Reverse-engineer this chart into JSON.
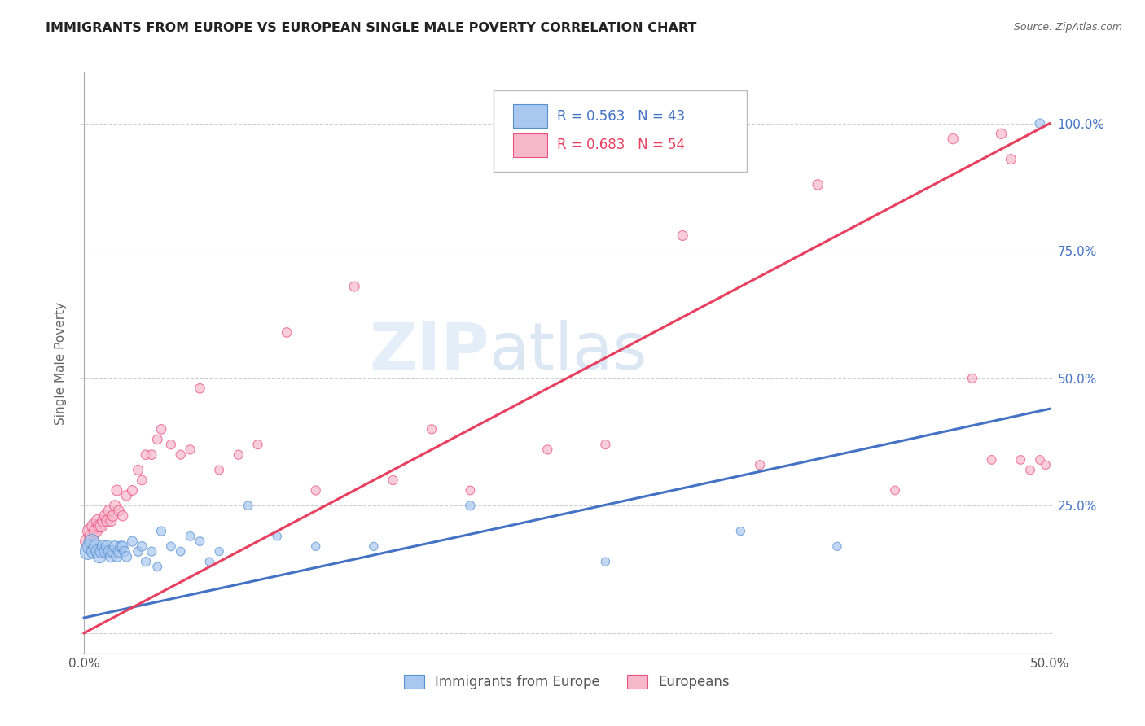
{
  "title": "IMMIGRANTS FROM EUROPE VS EUROPEAN SINGLE MALE POVERTY CORRELATION CHART",
  "source": "Source: ZipAtlas.com",
  "ylabel": "Single Male Poverty",
  "ytick_labels": [
    "",
    "25.0%",
    "50.0%",
    "75.0%",
    "100.0%"
  ],
  "ytick_positions": [
    0.0,
    0.25,
    0.5,
    0.75,
    1.0
  ],
  "xlim": [
    -0.002,
    0.502
  ],
  "ylim": [
    -0.04,
    1.1
  ],
  "legend_r_blue": "R = 0.563",
  "legend_n_blue": "N = 43",
  "legend_r_pink": "R = 0.683",
  "legend_n_pink": "N = 54",
  "legend_label_blue": "Immigrants from Europe",
  "legend_label_pink": "Europeans",
  "blue_fill_color": "#a8c8f0",
  "pink_fill_color": "#f8b8cc",
  "blue_edge_color": "#5590d0",
  "pink_edge_color": "#e85080",
  "blue_line_color": "#4472c4",
  "pink_line_color": "#e84060",
  "text_color_blue": "#4472c4",
  "text_color_pink": "#e84060",
  "blue_scatter_x": [
    0.002,
    0.003,
    0.004,
    0.005,
    0.006,
    0.007,
    0.008,
    0.009,
    0.01,
    0.011,
    0.012,
    0.013,
    0.014,
    0.015,
    0.016,
    0.017,
    0.018,
    0.019,
    0.02,
    0.021,
    0.022,
    0.025,
    0.028,
    0.03,
    0.032,
    0.035,
    0.038,
    0.04,
    0.045,
    0.05,
    0.055,
    0.06,
    0.065,
    0.07,
    0.085,
    0.1,
    0.12,
    0.15,
    0.2,
    0.27,
    0.34,
    0.39,
    0.495
  ],
  "blue_scatter_y": [
    0.16,
    0.17,
    0.18,
    0.16,
    0.17,
    0.16,
    0.15,
    0.16,
    0.17,
    0.16,
    0.17,
    0.16,
    0.15,
    0.16,
    0.17,
    0.15,
    0.16,
    0.17,
    0.17,
    0.16,
    0.15,
    0.18,
    0.16,
    0.17,
    0.14,
    0.16,
    0.13,
    0.2,
    0.17,
    0.16,
    0.19,
    0.18,
    0.14,
    0.16,
    0.25,
    0.19,
    0.17,
    0.17,
    0.25,
    0.14,
    0.2,
    0.17,
    1.0
  ],
  "blue_scatter_size": [
    200,
    180,
    160,
    150,
    140,
    130,
    130,
    120,
    120,
    110,
    110,
    100,
    100,
    100,
    95,
    90,
    90,
    85,
    85,
    80,
    80,
    75,
    70,
    70,
    65,
    65,
    60,
    65,
    60,
    60,
    60,
    60,
    55,
    55,
    60,
    55,
    55,
    55,
    65,
    55,
    55,
    55,
    70
  ],
  "pink_scatter_x": [
    0.002,
    0.003,
    0.004,
    0.005,
    0.006,
    0.007,
    0.008,
    0.009,
    0.01,
    0.011,
    0.012,
    0.013,
    0.014,
    0.015,
    0.016,
    0.017,
    0.018,
    0.02,
    0.022,
    0.025,
    0.028,
    0.03,
    0.032,
    0.035,
    0.038,
    0.04,
    0.045,
    0.05,
    0.055,
    0.06,
    0.07,
    0.08,
    0.09,
    0.105,
    0.12,
    0.14,
    0.16,
    0.18,
    0.2,
    0.24,
    0.27,
    0.31,
    0.35,
    0.38,
    0.42,
    0.45,
    0.46,
    0.47,
    0.475,
    0.48,
    0.485,
    0.49,
    0.495,
    0.498
  ],
  "pink_scatter_y": [
    0.18,
    0.2,
    0.19,
    0.21,
    0.2,
    0.22,
    0.21,
    0.21,
    0.22,
    0.23,
    0.22,
    0.24,
    0.22,
    0.23,
    0.25,
    0.28,
    0.24,
    0.23,
    0.27,
    0.28,
    0.32,
    0.3,
    0.35,
    0.35,
    0.38,
    0.4,
    0.37,
    0.35,
    0.36,
    0.48,
    0.32,
    0.35,
    0.37,
    0.59,
    0.28,
    0.68,
    0.3,
    0.4,
    0.28,
    0.36,
    0.37,
    0.78,
    0.33,
    0.88,
    0.28,
    0.97,
    0.5,
    0.34,
    0.98,
    0.93,
    0.34,
    0.32,
    0.34,
    0.33
  ],
  "pink_scatter_size": [
    180,
    160,
    150,
    140,
    130,
    120,
    120,
    110,
    110,
    100,
    100,
    95,
    90,
    90,
    90,
    85,
    85,
    80,
    80,
    75,
    75,
    70,
    70,
    70,
    70,
    70,
    65,
    65,
    65,
    70,
    60,
    65,
    65,
    70,
    65,
    75,
    65,
    65,
    60,
    65,
    65,
    75,
    65,
    80,
    60,
    80,
    65,
    60,
    80,
    75,
    60,
    60,
    60,
    60
  ],
  "blue_line_x": [
    0.0,
    0.5
  ],
  "blue_line_y": [
    0.03,
    0.44
  ],
  "pink_line_x": [
    0.0,
    0.5
  ],
  "pink_line_y": [
    0.0,
    1.0
  ],
  "watermark_zip": "ZIP",
  "watermark_atlas": "atlas",
  "background_color": "#ffffff",
  "grid_color": "#d0d0d0"
}
